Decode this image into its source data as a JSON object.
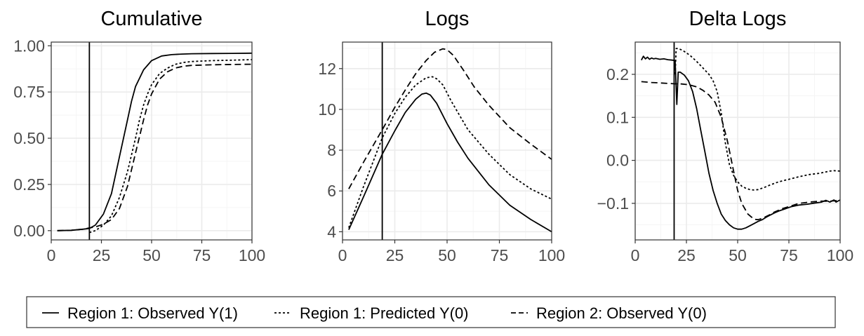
{
  "chart_data": [
    {
      "type": "line",
      "title": "Cumulative",
      "xlabel": "",
      "ylabel": "",
      "xlim": [
        0,
        100
      ],
      "ylim": [
        -0.05,
        1.02
      ],
      "xticks": [
        "0",
        "25",
        "50",
        "75",
        "100"
      ],
      "yticks": [
        "0.00",
        "0.25",
        "0.50",
        "0.75",
        "1.00"
      ],
      "vline_x": 19,
      "grid": true,
      "series": [
        {
          "name": "Region 1: Observed Y(1)",
          "style": "solid",
          "x": [
            3,
            10,
            16,
            19,
            22,
            26,
            30,
            34,
            38,
            40,
            42,
            46,
            50,
            55,
            60,
            65,
            70,
            80,
            90,
            100
          ],
          "y": [
            0.0,
            0.002,
            0.008,
            0.012,
            0.03,
            0.09,
            0.2,
            0.4,
            0.6,
            0.7,
            0.78,
            0.87,
            0.92,
            0.945,
            0.952,
            0.955,
            0.957,
            0.958,
            0.959,
            0.96
          ]
        },
        {
          "name": "Region 1: Predicted Y(0)",
          "style": "dotted",
          "x": [
            19,
            22,
            26,
            30,
            34,
            38,
            42,
            44,
            46,
            48,
            50,
            54,
            58,
            62,
            66,
            70,
            80,
            90,
            100
          ],
          "y": [
            -0.01,
            0.0,
            0.03,
            0.08,
            0.18,
            0.32,
            0.5,
            0.6,
            0.68,
            0.74,
            0.79,
            0.85,
            0.88,
            0.9,
            0.91,
            0.915,
            0.92,
            0.922,
            0.925
          ]
        },
        {
          "name": "Region 2: Observed Y(0)",
          "style": "dashed",
          "x": [
            3,
            10,
            16,
            19,
            22,
            26,
            30,
            34,
            38,
            42,
            46,
            48,
            50,
            54,
            58,
            62,
            66,
            70,
            80,
            90,
            100
          ],
          "y": [
            0.0,
            0.002,
            0.008,
            0.015,
            0.02,
            0.035,
            0.06,
            0.12,
            0.24,
            0.42,
            0.6,
            0.68,
            0.74,
            0.82,
            0.86,
            0.88,
            0.89,
            0.894,
            0.897,
            0.899,
            0.9
          ]
        }
      ]
    },
    {
      "type": "line",
      "title": "Logs",
      "xlabel": "",
      "ylabel": "",
      "xlim": [
        0,
        100
      ],
      "ylim": [
        3.6,
        13.3
      ],
      "xticks": [
        "0",
        "25",
        "50",
        "75",
        "100"
      ],
      "yticks": [
        "4",
        "6",
        "8",
        "10",
        "12"
      ],
      "vline_x": 19,
      "grid": true,
      "series": [
        {
          "name": "Region 1: Observed Y(1)",
          "style": "solid",
          "x": [
            3,
            10,
            19,
            25,
            30,
            35,
            38,
            40,
            42,
            45,
            50,
            55,
            60,
            70,
            80,
            90,
            100
          ],
          "y": [
            4.1,
            5.7,
            7.8,
            8.95,
            9.85,
            10.5,
            10.75,
            10.8,
            10.7,
            10.3,
            9.3,
            8.4,
            7.6,
            6.3,
            5.3,
            4.6,
            4.0
          ]
        },
        {
          "name": "Region 1: Predicted Y(0)",
          "style": "dotted",
          "x": [
            3,
            10,
            19,
            25,
            30,
            35,
            40,
            43,
            45,
            48,
            52,
            56,
            60,
            70,
            80,
            90,
            100
          ],
          "y": [
            4.2,
            6.2,
            8.6,
            9.8,
            10.6,
            11.2,
            11.55,
            11.6,
            11.5,
            11.2,
            10.4,
            9.7,
            9.0,
            7.8,
            6.8,
            6.1,
            5.6
          ]
        },
        {
          "name": "Region 2: Observed Y(0)",
          "style": "dashed",
          "x": [
            3,
            10,
            19,
            25,
            30,
            35,
            40,
            44,
            48,
            50,
            53,
            58,
            63,
            70,
            80,
            90,
            100
          ],
          "y": [
            6.1,
            7.4,
            9.0,
            10.1,
            10.95,
            11.75,
            12.4,
            12.8,
            12.97,
            12.93,
            12.65,
            11.9,
            11.1,
            10.2,
            9.1,
            8.3,
            7.55
          ]
        }
      ]
    },
    {
      "type": "line",
      "title": "Delta Logs",
      "xlabel": "",
      "ylabel": "",
      "xlim": [
        0,
        100
      ],
      "ylim": [
        -0.185,
        0.275
      ],
      "xticks": [
        "0",
        "25",
        "50",
        "75",
        "100"
      ],
      "yticks": [
        "−0.1",
        "0.0",
        "0.1",
        "0.2"
      ],
      "vline_x": 19,
      "grid": true,
      "series": [
        {
          "name": "Region 1: Observed Y(1)",
          "style": "solid",
          "x": [
            3,
            4,
            5,
            6,
            7,
            8,
            9,
            10,
            12,
            14,
            16,
            18,
            19.5,
            20.3,
            21,
            22,
            24,
            26,
            28,
            30,
            32,
            34,
            36,
            38,
            40,
            42,
            44,
            46,
            48,
            50,
            52,
            54,
            56,
            58,
            60,
            62,
            64,
            66,
            68,
            70,
            73,
            76,
            80,
            84,
            88,
            91,
            93,
            95,
            97,
            98,
            100
          ],
          "y": [
            0.233,
            0.242,
            0.236,
            0.24,
            0.235,
            0.238,
            0.236,
            0.237,
            0.235,
            0.236,
            0.234,
            0.233,
            0.232,
            0.13,
            0.205,
            0.205,
            0.198,
            0.185,
            0.16,
            0.12,
            0.07,
            0.02,
            -0.03,
            -0.07,
            -0.1,
            -0.125,
            -0.14,
            -0.15,
            -0.157,
            -0.16,
            -0.16,
            -0.157,
            -0.152,
            -0.147,
            -0.142,
            -0.138,
            -0.132,
            -0.127,
            -0.122,
            -0.118,
            -0.113,
            -0.108,
            -0.104,
            -0.102,
            -0.099,
            -0.097,
            -0.093,
            -0.097,
            -0.092,
            -0.097,
            -0.092
          ]
        },
        {
          "name": "Region 1: Predicted Y(0)",
          "style": "dotted",
          "x": [
            19.5,
            20,
            21,
            23,
            25,
            27,
            30,
            33,
            36,
            38,
            40,
            42,
            44,
            46,
            48,
            50,
            52,
            54,
            56,
            58,
            60,
            63,
            66,
            70,
            75,
            80,
            85,
            90,
            93,
            95,
            97,
            100
          ],
          "y": [
            0.2,
            0.26,
            0.26,
            0.256,
            0.25,
            0.243,
            0.23,
            0.215,
            0.2,
            0.185,
            0.16,
            0.11,
            0.04,
            -0.01,
            -0.035,
            -0.05,
            -0.06,
            -0.065,
            -0.068,
            -0.069,
            -0.068,
            -0.063,
            -0.057,
            -0.05,
            -0.044,
            -0.038,
            -0.033,
            -0.03,
            -0.027,
            -0.025,
            -0.024,
            -0.025
          ]
        },
        {
          "name": "Region 2: Observed Y(0)",
          "style": "dashed",
          "x": [
            3,
            8,
            12,
            16,
            19.5,
            22,
            26,
            30,
            33,
            36,
            39,
            42,
            45,
            48,
            50,
            52,
            55,
            58,
            60,
            62,
            65,
            68,
            72,
            76,
            80,
            85,
            90,
            95,
            100
          ],
          "y": [
            0.183,
            0.181,
            0.18,
            0.179,
            0.178,
            0.178,
            0.176,
            0.171,
            0.163,
            0.152,
            0.135,
            0.1,
            0.045,
            -0.025,
            -0.07,
            -0.1,
            -0.125,
            -0.137,
            -0.138,
            -0.135,
            -0.128,
            -0.12,
            -0.112,
            -0.106,
            -0.1,
            -0.097,
            -0.095,
            -0.095,
            -0.093
          ]
        }
      ]
    }
  ],
  "legend": {
    "position": "bottom",
    "entries": [
      {
        "label": "Region 1: Observed Y(1)",
        "style": "solid"
      },
      {
        "label": "Region 1: Predicted Y(0)",
        "style": "dotted"
      },
      {
        "label": "Region 2: Observed Y(0)",
        "style": "dashed"
      }
    ]
  },
  "colors": {
    "line": "#000000",
    "grid_major": "#ebebeb",
    "grid_minor": "#f5f5f5",
    "tick_text": "#4d4d4d",
    "panel_border": "#333333"
  }
}
